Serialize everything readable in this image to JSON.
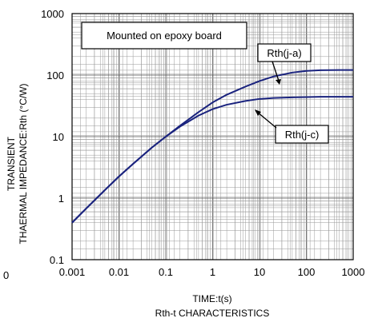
{
  "chart_data": {
    "type": "line",
    "xscale": "log",
    "yscale": "log",
    "xlim": [
      0.001,
      1000
    ],
    "ylim": [
      0.1,
      1000
    ],
    "x_ticks": [
      "0.001",
      "0.01",
      "0.1",
      "1",
      "10",
      "100",
      "1000"
    ],
    "y_ticks": [
      "0.1",
      "1",
      "10",
      "100",
      "1000"
    ],
    "xlabel": "TIME:t(s)",
    "subtitle": "Rth-t CHARACTERISTICS",
    "ylabel_line1": "TRANSIENT",
    "ylabel_line2": "THAERMAL IMPEDANCE:Rth  (°C/W)",
    "stray_label": "0",
    "legend_box": "Mounted on epoxy board",
    "grid": true,
    "line_color": "#1a237e",
    "series": [
      {
        "name": "Rth(j-a)",
        "x": [
          0.001,
          0.002,
          0.005,
          0.01,
          0.02,
          0.05,
          0.1,
          0.2,
          0.5,
          1,
          2,
          5,
          10,
          20,
          50,
          100,
          200,
          500,
          1000
        ],
        "y": [
          0.4,
          0.68,
          1.35,
          2.25,
          3.6,
          6.6,
          10,
          15,
          25,
          36,
          48,
          65,
          80,
          95,
          110,
          117,
          120,
          121,
          121
        ]
      },
      {
        "name": "Rth(j-c)",
        "x": [
          0.001,
          0.002,
          0.005,
          0.01,
          0.02,
          0.05,
          0.1,
          0.2,
          0.5,
          1,
          2,
          5,
          10,
          20,
          50,
          100,
          200,
          500,
          1000
        ],
        "y": [
          0.4,
          0.68,
          1.35,
          2.25,
          3.6,
          6.6,
          10,
          14.5,
          22,
          28,
          33,
          38,
          41,
          42.5,
          43.5,
          44,
          44.5,
          44.5,
          44.5
        ]
      }
    ]
  }
}
